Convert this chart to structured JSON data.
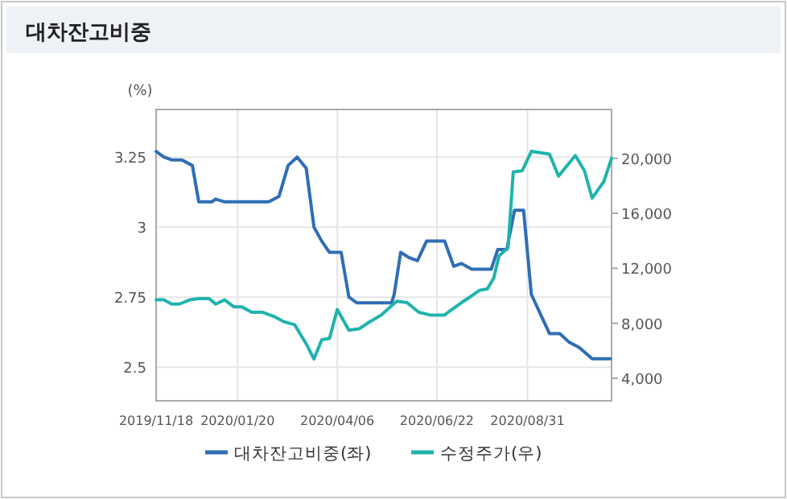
{
  "chart_data": {
    "type": "line",
    "title": "대차잔고비중",
    "ylabel": "(%)",
    "xlim": [
      "2019-11-18",
      "2020-11-04"
    ],
    "xticks": [
      {
        "value": "2019-11-18",
        "label": "2019/11/18"
      },
      {
        "value": "2020-01-20",
        "label": "2020/01/20"
      },
      {
        "value": "2020-04-06",
        "label": "2020/04/06"
      },
      {
        "value": "2020-06-22",
        "label": "2020/06/22"
      },
      {
        "value": "2020-08-31",
        "label": "2020/08/31"
      }
    ],
    "ylim": [
      2.38,
      3.42
    ],
    "yticks": [
      2.5,
      2.75,
      3,
      3.25
    ],
    "y2lim": [
      2360,
      23550
    ],
    "y2ticks": [
      {
        "value": 4000,
        "label": "4,000"
      },
      {
        "value": 8000,
        "label": "8,000"
      },
      {
        "value": 12000,
        "label": "12,000"
      },
      {
        "value": 16000,
        "label": "16,000"
      },
      {
        "value": 20000,
        "label": "20,000"
      }
    ],
    "grid": true,
    "legend": "bottom",
    "marker": "none",
    "line_style": "solid",
    "series": [
      {
        "name": "대차잔고비중(좌)",
        "color": "#2f6eb5",
        "x": [
          "2019-11-18",
          "2019-11-24",
          "2019-11-30",
          "2019-12-08",
          "2019-12-16",
          "2019-12-21",
          "2019-12-31",
          "2020-01-03",
          "2020-01-10",
          "2020-02-13",
          "2020-02-21",
          "2020-02-28",
          "2020-03-06",
          "2020-03-13",
          "2020-03-19",
          "2020-03-25",
          "2020-03-31",
          "2020-04-09",
          "2020-04-15",
          "2020-04-21",
          "2020-05-18",
          "2020-05-20",
          "2020-05-25",
          "2020-06-01",
          "2020-06-07",
          "2020-06-14",
          "2020-06-28",
          "2020-07-05",
          "2020-07-11",
          "2020-07-19",
          "2020-08-03",
          "2020-08-08",
          "2020-08-15",
          "2020-08-21",
          "2020-08-28",
          "2020-09-03",
          "2020-09-11",
          "2020-09-17",
          "2020-09-25",
          "2020-10-02",
          "2020-10-10",
          "2020-10-20",
          "2020-10-27",
          "2020-11-03"
        ],
        "values": [
          3.27,
          3.25,
          3.24,
          3.24,
          3.22,
          3.09,
          3.09,
          3.1,
          3.09,
          3.09,
          3.11,
          3.22,
          3.25,
          3.21,
          3.0,
          2.95,
          2.91,
          2.91,
          2.75,
          2.73,
          2.73,
          2.76,
          2.91,
          2.89,
          2.88,
          2.95,
          2.95,
          2.86,
          2.87,
          2.85,
          2.85,
          2.92,
          2.92,
          3.06,
          3.06,
          2.76,
          2.68,
          2.62,
          2.62,
          2.59,
          2.57,
          2.53,
          2.53,
          2.53
        ]
      },
      {
        "name": "수정주가(우)",
        "color": "#20b3ad",
        "axis": "y2",
        "x": [
          "2019-11-18",
          "2019-11-24",
          "2019-11-30",
          "2019-12-06",
          "2019-12-14",
          "2019-12-21",
          "2019-12-29",
          "2020-01-03",
          "2020-01-10",
          "2020-01-17",
          "2020-01-23",
          "2020-01-31",
          "2020-02-08",
          "2020-02-17",
          "2020-02-25",
          "2020-03-04",
          "2020-03-13",
          "2020-03-19",
          "2020-03-25",
          "2020-03-31",
          "2020-04-06",
          "2020-04-15",
          "2020-04-23",
          "2020-05-01",
          "2020-05-10",
          "2020-05-16",
          "2020-05-22",
          "2020-05-30",
          "2020-06-08",
          "2020-06-17",
          "2020-06-28",
          "2020-07-02",
          "2020-07-11",
          "2020-07-19",
          "2020-07-25",
          "2020-07-31",
          "2020-08-05",
          "2020-08-09",
          "2020-08-16",
          "2020-08-20",
          "2020-08-27",
          "2020-09-03",
          "2020-09-17",
          "2020-09-24",
          "2020-10-07",
          "2020-10-14",
          "2020-10-20",
          "2020-10-29",
          "2020-11-04"
        ],
        "values": [
          9700,
          9700,
          9400,
          9400,
          9700,
          9800,
          9800,
          9400,
          9700,
          9200,
          9200,
          8800,
          8800,
          8500,
          8100,
          7900,
          6500,
          5400,
          6800,
          6900,
          9000,
          7500,
          7600,
          8100,
          8600,
          9100,
          9600,
          9500,
          8800,
          8600,
          8600,
          8900,
          9500,
          10000,
          10400,
          10500,
          11300,
          12900,
          13500,
          19000,
          19100,
          20500,
          20300,
          18700,
          20200,
          19100,
          17100,
          18300,
          20000
        ]
      }
    ]
  }
}
